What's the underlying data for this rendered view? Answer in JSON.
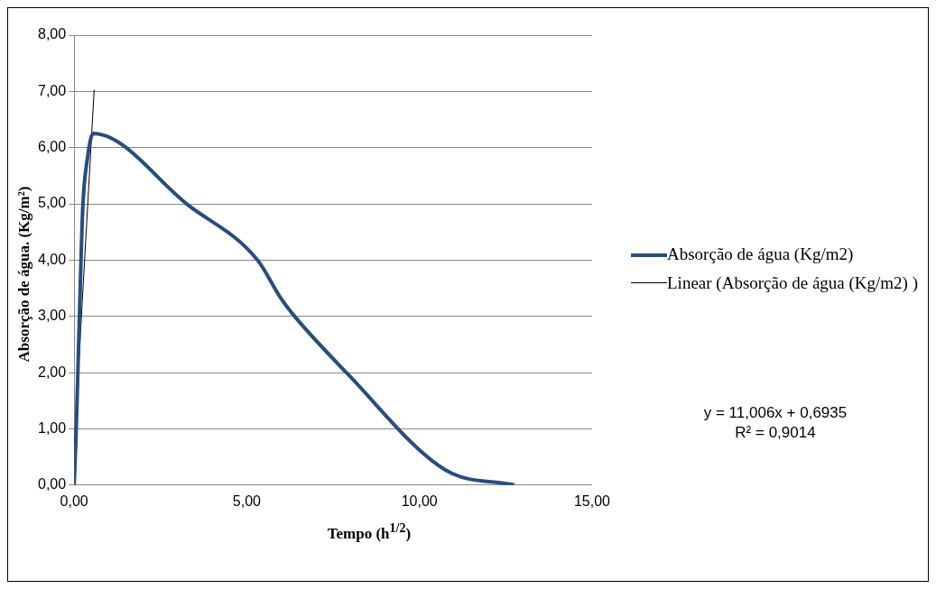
{
  "chart_data": {
    "type": "line",
    "xlabel": "Tempo (h$^{1/2}$)",
    "ylabel": "Absorção de água. (Kg/m²)",
    "xlim": [
      0,
      15
    ],
    "xticks": [
      {
        "value": 0,
        "label": "0,00"
      },
      {
        "value": 5,
        "label": "5,00"
      },
      {
        "value": 10,
        "label": "10,00"
      },
      {
        "value": 15,
        "label": "15,00"
      }
    ],
    "ylim": [
      0,
      8
    ],
    "yticks": [
      {
        "value": 0,
        "label": "0,00"
      },
      {
        "value": 1,
        "label": "1,00"
      },
      {
        "value": 2,
        "label": "2,00"
      },
      {
        "value": 3,
        "label": "3,00"
      },
      {
        "value": 4,
        "label": "4,00"
      },
      {
        "value": 5,
        "label": "5,00"
      },
      {
        "value": 6,
        "label": "6,00"
      },
      {
        "value": 7,
        "label": "7,00"
      },
      {
        "value": 8,
        "label": "8,00"
      }
    ],
    "grid": "y",
    "legend": "right",
    "marker": "none",
    "series": [
      {
        "name": "Absorção de água (Kg/m2)",
        "color": "#264d7e",
        "x": [
          0,
          0.05,
          0.15,
          0.25,
          0.38,
          0.55,
          3.3,
          5.3,
          6.0,
          6.4,
          7.9,
          10.75,
          12.75
        ],
        "values": [
          0,
          0.78,
          2.93,
          4.93,
          5.79,
          6.25,
          4.98,
          4.01,
          3.31,
          2.99,
          1.99,
          0.27,
          0
        ]
      },
      {
        "name": "Linear (Absorção de água (Kg/m2) )",
        "color": "#000000",
        "x": [
          0,
          0.58
        ],
        "values": [
          0.69,
          7.03
        ]
      }
    ],
    "annotations": [
      "y = 11,006x + 0,6935",
      "R² = 0,9014"
    ]
  }
}
